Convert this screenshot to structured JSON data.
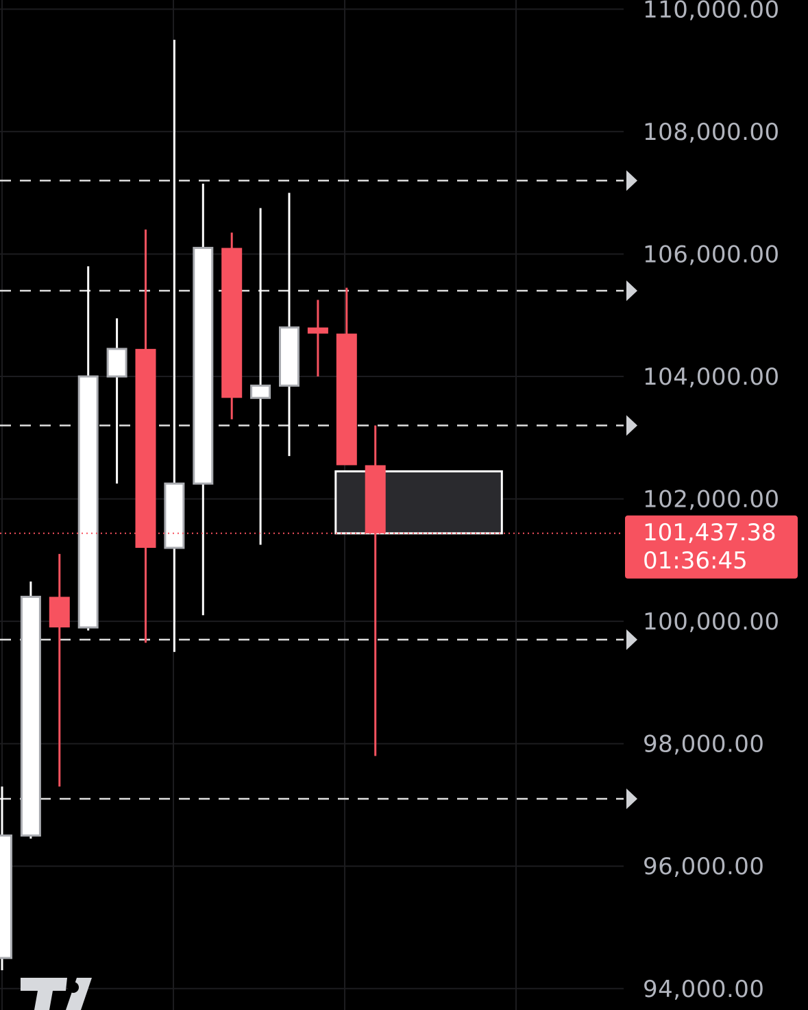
{
  "chart_data": {
    "type": "candlestick",
    "ylim": [
      93650,
      110150
    ],
    "y_ticks": [
      {
        "value": 110000,
        "label": "110,000.00"
      },
      {
        "value": 108000,
        "label": "108,000.00"
      },
      {
        "value": 106000,
        "label": "106,000.00"
      },
      {
        "value": 104000,
        "label": "104,000.00"
      },
      {
        "value": 102000,
        "label": "102,000.00"
      },
      {
        "value": 100000,
        "label": "100,000.00"
      },
      {
        "value": 98000,
        "label": "98,000.00"
      },
      {
        "value": 96000,
        "label": "96,000.00"
      },
      {
        "value": 94000,
        "label": "94,000.00"
      }
    ],
    "candles": [
      {
        "open": 94500,
        "high": 97300,
        "low": 94300,
        "close": 96500
      },
      {
        "open": 96500,
        "high": 100650,
        "low": 96450,
        "close": 100400
      },
      {
        "open": 100400,
        "high": 101100,
        "low": 97300,
        "close": 99900
      },
      {
        "open": 99900,
        "high": 105800,
        "low": 99850,
        "close": 104000
      },
      {
        "open": 104000,
        "high": 104950,
        "low": 102250,
        "close": 104450
      },
      {
        "open": 104450,
        "high": 106400,
        "low": 99650,
        "close": 101200
      },
      {
        "open": 101200,
        "high": 109500,
        "low": 99500,
        "close": 102250
      },
      {
        "open": 102250,
        "high": 107150,
        "low": 100100,
        "close": 106100
      },
      {
        "open": 106100,
        "high": 106350,
        "low": 103300,
        "close": 103650
      },
      {
        "open": 103650,
        "high": 106750,
        "low": 101250,
        "close": 103850
      },
      {
        "open": 103850,
        "high": 107000,
        "low": 102700,
        "close": 104800
      },
      {
        "open": 104800,
        "high": 105250,
        "low": 104000,
        "close": 104700
      },
      {
        "open": 104700,
        "high": 105450,
        "low": 102550,
        "close": 102550
      },
      {
        "open": 102550,
        "high": 103200,
        "low": 97800,
        "close": 101437.38
      }
    ],
    "horizontal_levels": [
      107200,
      105400,
      103200,
      99700,
      97100
    ],
    "zone": {
      "top": 102450,
      "bottom": 101437.38,
      "start_candle": 12,
      "end_candle": 17
    },
    "current_price": {
      "value": 101437.38,
      "label": "101,437.38",
      "countdown": "01:36:45"
    },
    "colors": {
      "up": "#ffffff",
      "down": "#f7525f",
      "background": "#000000",
      "grid": "#1c1c1f",
      "level": "#e0e0e0",
      "zone_fill": "#2a2a2e"
    }
  },
  "logo": {
    "text": "TV"
  }
}
